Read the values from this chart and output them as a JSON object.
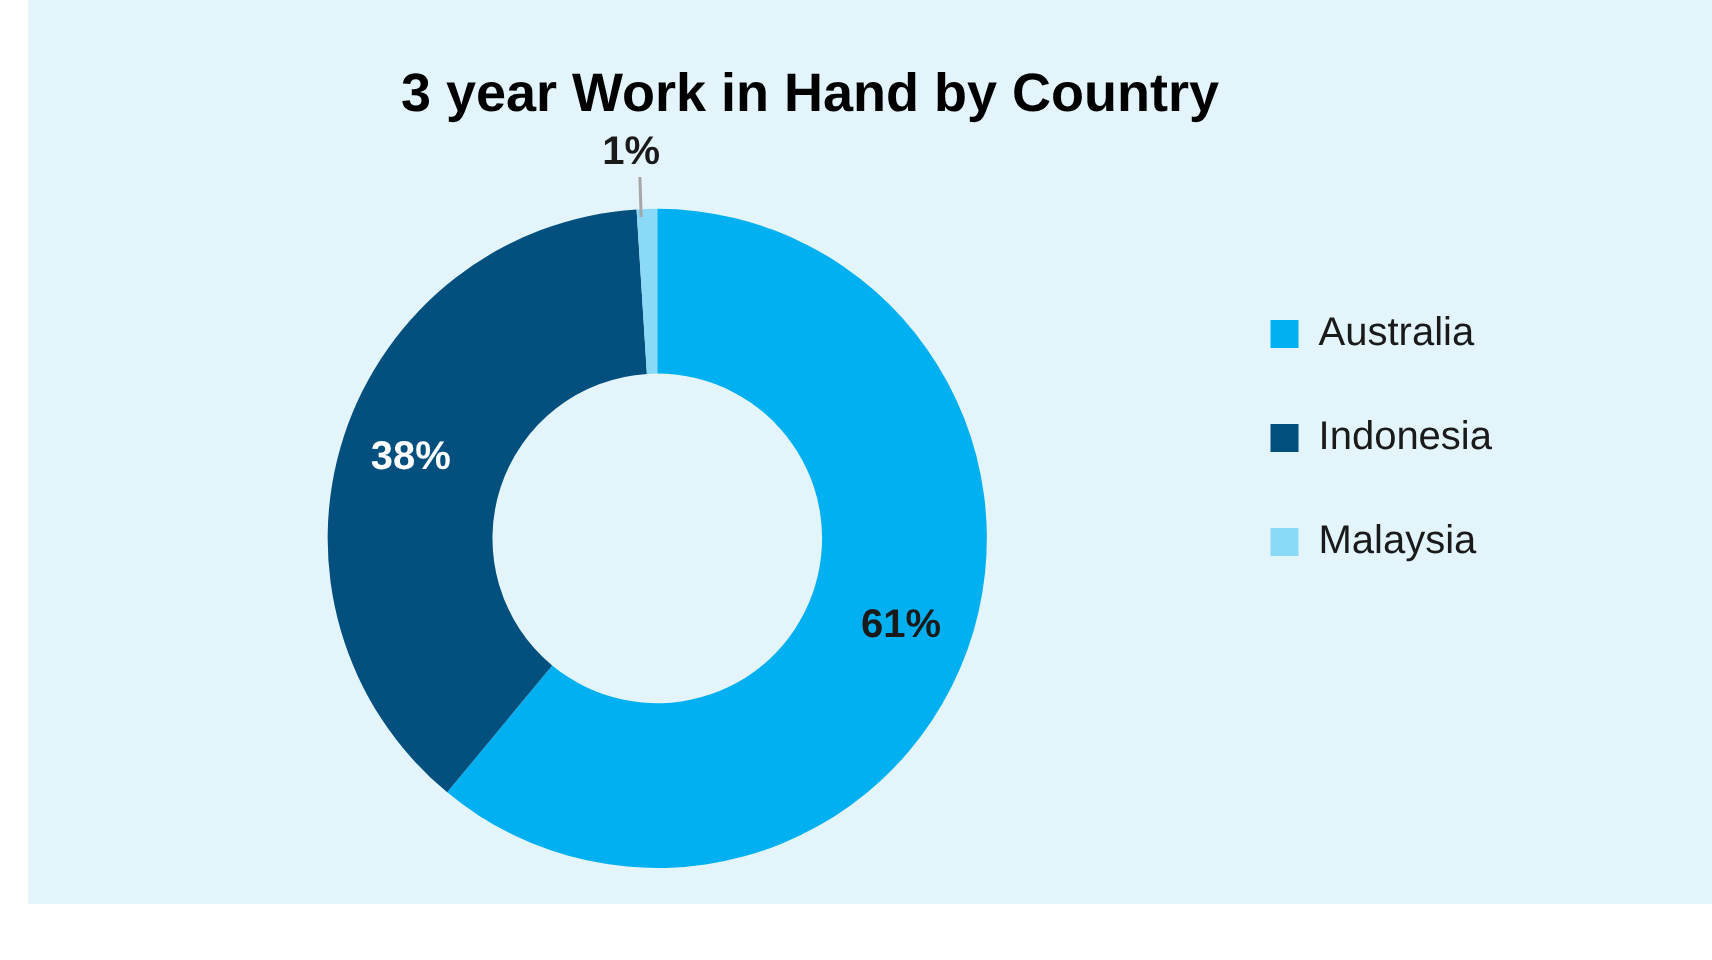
{
  "chart_data": {
    "type": "donut",
    "title": "3 year Work in Hand by Country",
    "categories": [
      "Australia",
      "Indonesia",
      "Malaysia"
    ],
    "values": [
      61,
      38,
      1
    ],
    "colors": [
      "#00b0f0",
      "#03507f",
      "#8ad9f7"
    ],
    "value_labels": [
      "61%",
      "38%",
      "1%"
    ],
    "legend": "right"
  }
}
